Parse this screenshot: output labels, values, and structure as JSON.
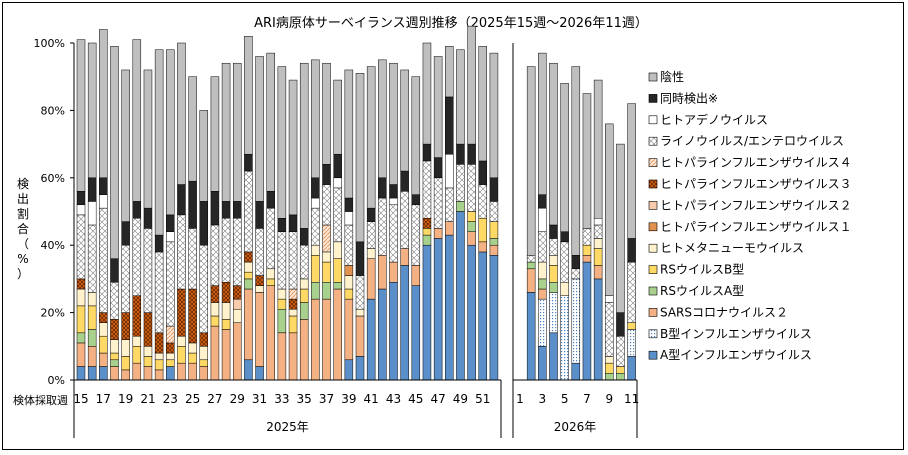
{
  "chart_data": {
    "type": "bar",
    "stacked": true,
    "title": "ARI病原体サーベイランス週別推移（2025年15週～2026年11週）",
    "ylabel_chars": [
      "検",
      "出",
      "割",
      "合",
      "（",
      "%",
      "）"
    ],
    "xlabel": "検体採取週",
    "ylim": [
      0,
      100
    ],
    "yticks": [
      "0%",
      "20%",
      "40%",
      "60%",
      "80%",
      "100%"
    ],
    "grid": false,
    "legend_position": "right",
    "groups": [
      {
        "label": "2025年",
        "weeks": [
          15,
          16,
          17,
          18,
          19,
          20,
          21,
          22,
          23,
          24,
          25,
          26,
          27,
          28,
          29,
          30,
          31,
          32,
          33,
          34,
          35,
          36,
          37,
          38,
          39,
          40,
          41,
          42,
          43,
          44,
          45,
          46,
          47,
          48,
          49,
          50,
          51,
          52
        ],
        "tick_labels": [
          "15",
          "17",
          "19",
          "21",
          "23",
          "25",
          "27",
          "29",
          "31",
          "33",
          "35",
          "37",
          "39",
          "41",
          "43",
          "45",
          "47",
          "49",
          "51"
        ]
      },
      {
        "label": "2026年",
        "weeks": [
          1,
          2,
          3,
          4,
          5,
          6,
          7,
          8,
          9,
          10,
          11
        ],
        "tick_labels": [
          "1",
          "3",
          "5",
          "7",
          "9",
          "11"
        ]
      }
    ],
    "series": [
      {
        "name": "A型インフルエンザウイルス",
        "color": "#5b8fc9",
        "pattern": "solid",
        "values": [
          4,
          4,
          4,
          0,
          0,
          0,
          0,
          0,
          4,
          0,
          0,
          0,
          0,
          0,
          0,
          6,
          4,
          0,
          0,
          0,
          0,
          0,
          0,
          0,
          6,
          7,
          24,
          27,
          29,
          34,
          28,
          40,
          42,
          43,
          50,
          40,
          38,
          37,
          0,
          26,
          10,
          14,
          0,
          5,
          35,
          30,
          0,
          0,
          7
        ]
      },
      {
        "name": "B型インフルエンザウイルス",
        "color": "#ffffff",
        "pattern": "dots-blue",
        "values": [
          0,
          0,
          0,
          0,
          0,
          0,
          0,
          0,
          0,
          0,
          0,
          0,
          0,
          0,
          0,
          0,
          0,
          0,
          0,
          0,
          0,
          0,
          0,
          0,
          0,
          0,
          0,
          0,
          0,
          0,
          0,
          0,
          0,
          0,
          0,
          0,
          0,
          0,
          0,
          0,
          14,
          12,
          25,
          25,
          0,
          0,
          0,
          0,
          8
        ]
      },
      {
        "name": "SARSコロナウイルス２",
        "color": "#f4b183",
        "pattern": "solid",
        "values": [
          7,
          6,
          4,
          4,
          3,
          5,
          4,
          3,
          0,
          5,
          5,
          4,
          16,
          15,
          17,
          21,
          22,
          28,
          14,
          14,
          18,
          24,
          24,
          27,
          18,
          12,
          12,
          10,
          6,
          5,
          6,
          0,
          3,
          4,
          0,
          4,
          3,
          3,
          0,
          7,
          3,
          0,
          0,
          0,
          2,
          4,
          0,
          0,
          0
        ]
      },
      {
        "name": "RSウイルスA型",
        "color": "#a9d18e",
        "pattern": "solid",
        "values": [
          3,
          5,
          0,
          2,
          0,
          0,
          0,
          0,
          0,
          0,
          0,
          0,
          0,
          0,
          0,
          3,
          0,
          0,
          7,
          0,
          5,
          5,
          5,
          2,
          0,
          0,
          0,
          0,
          0,
          0,
          0,
          3,
          0,
          0,
          3,
          3,
          0,
          2,
          0,
          2,
          3,
          3,
          0,
          0,
          0,
          0,
          2,
          2,
          0
        ]
      },
      {
        "name": "RSウイルスB型",
        "color": "#ffd966",
        "pattern": "solid",
        "values": [
          8,
          7,
          5,
          2,
          4,
          5,
          3,
          3,
          2,
          5,
          3,
          2,
          3,
          3,
          0,
          2,
          0,
          2,
          3,
          5,
          4,
          8,
          6,
          7,
          3,
          0,
          0,
          0,
          0,
          0,
          0,
          2,
          0,
          0,
          0,
          3,
          7,
          5,
          0,
          0,
          0,
          5,
          0,
          0,
          3,
          5,
          3,
          2,
          2
        ]
      },
      {
        "name": "ヒトメタニューモウイルス",
        "color": "#fff2cc",
        "pattern": "solid",
        "values": [
          5,
          4,
          4,
          4,
          5,
          3,
          3,
          2,
          2,
          3,
          3,
          4,
          4,
          5,
          4,
          3,
          2,
          3,
          3,
          2,
          3,
          3,
          3,
          5,
          4,
          2,
          3,
          0,
          0,
          0,
          0,
          0,
          0,
          0,
          0,
          0,
          0,
          0,
          0,
          0,
          5,
          3,
          4,
          0,
          0,
          3,
          2,
          0,
          0
        ]
      },
      {
        "name": "ヒトパラインフルエンザウイルス１",
        "color": "#e2924f",
        "pattern": "solid",
        "values": [
          0,
          0,
          0,
          0,
          0,
          0,
          0,
          0,
          0,
          0,
          0,
          0,
          0,
          0,
          0,
          0,
          0,
          0,
          0,
          0,
          0,
          0,
          0,
          0,
          3,
          0,
          0,
          0,
          0,
          0,
          0,
          0,
          0,
          0,
          0,
          0,
          0,
          0,
          0,
          0,
          0,
          0,
          0,
          0,
          0,
          0,
          0,
          0,
          0
        ]
      },
      {
        "name": "ヒトパラインフルエンザウイルス２",
        "color": "#f8cbad",
        "pattern": "solid",
        "values": [
          0,
          0,
          0,
          0,
          0,
          0,
          0,
          0,
          0,
          0,
          0,
          0,
          0,
          0,
          3,
          0,
          0,
          0,
          0,
          0,
          0,
          0,
          0,
          0,
          0,
          0,
          0,
          0,
          0,
          0,
          0,
          0,
          0,
          0,
          0,
          0,
          0,
          0,
          0,
          0,
          0,
          0,
          0,
          0,
          0,
          0,
          0,
          0,
          0
        ]
      },
      {
        "name": "ヒトパラインフルエンザウイルス３",
        "color": "#c55a11",
        "pattern": "check",
        "values": [
          3,
          0,
          3,
          6,
          8,
          12,
          10,
          6,
          3,
          14,
          16,
          4,
          5,
          6,
          4,
          3,
          3,
          0,
          0,
          3,
          0,
          0,
          0,
          0,
          0,
          0,
          0,
          0,
          0,
          0,
          0,
          3,
          0,
          0,
          0,
          0,
          0,
          0,
          0,
          0,
          0,
          0,
          0,
          0,
          0,
          0,
          0,
          0,
          0
        ]
      },
      {
        "name": "ヒトパラインフルエンザウイルス４",
        "color": "#fbe5d6",
        "pattern": "diag",
        "values": [
          0,
          0,
          0,
          0,
          0,
          0,
          0,
          0,
          5,
          0,
          0,
          0,
          0,
          0,
          0,
          0,
          0,
          0,
          0,
          3,
          0,
          0,
          8,
          0,
          0,
          0,
          0,
          0,
          0,
          0,
          0,
          0,
          0,
          0,
          0,
          0,
          0,
          0,
          0,
          0,
          0,
          0,
          0,
          0,
          0,
          0,
          0,
          0,
          0
        ]
      },
      {
        "name": "ライノウイルス/エンテロウイルス",
        "color": "#ffffff",
        "pattern": "cross",
        "values": [
          19,
          20,
          31,
          11,
          20,
          23,
          25,
          24,
          25,
          22,
          18,
          26,
          18,
          19,
          20,
          24,
          14,
          18,
          17,
          17,
          10,
          11,
          12,
          16,
          12,
          10,
          8,
          17,
          17,
          17,
          18,
          17,
          15,
          10,
          11,
          14,
          10,
          6,
          0,
          2,
          9,
          5,
          12,
          3,
          5,
          4,
          16,
          9,
          18
        ]
      },
      {
        "name": "ヒトアデノウイルス",
        "color": "#ffffff",
        "pattern": "outline",
        "values": [
          3,
          7,
          4,
          0,
          0,
          0,
          0,
          0,
          3,
          0,
          0,
          0,
          0,
          0,
          0,
          0,
          0,
          0,
          0,
          0,
          0,
          3,
          0,
          3,
          4,
          0,
          0,
          0,
          2,
          0,
          0,
          0,
          0,
          10,
          0,
          0,
          0,
          0,
          0,
          0,
          7,
          0,
          0,
          0,
          0,
          2,
          2,
          0,
          0
        ]
      },
      {
        "name": "同時検出※",
        "color": "#262626",
        "pattern": "solid",
        "values": [
          4,
          7,
          5,
          7,
          7,
          5,
          6,
          5,
          5,
          9,
          14,
          13,
          10,
          5,
          5,
          5,
          8,
          5,
          4,
          5,
          5,
          6,
          6,
          7,
          4,
          10,
          4,
          6,
          4,
          6,
          3,
          5,
          6,
          17,
          6,
          6,
          7,
          7,
          0,
          0,
          4,
          4,
          3,
          4,
          0,
          0,
          0,
          7,
          7
        ]
      },
      {
        "name": "陰性",
        "color": "#bfbfbf",
        "pattern": "solid",
        "values": [
          45,
          40,
          44,
          63,
          45,
          48,
          41,
          55,
          49,
          42,
          31,
          27,
          34,
          41,
          41,
          35,
          43,
          41,
          45,
          40,
          49,
          35,
          30,
          22,
          38,
          50,
          42,
          35,
          36,
          30,
          35,
          30,
          30,
          15,
          28,
          35,
          34,
          37,
          0,
          56,
          42,
          48,
          44,
          56,
          40,
          41,
          51,
          50,
          40
        ]
      }
    ]
  }
}
